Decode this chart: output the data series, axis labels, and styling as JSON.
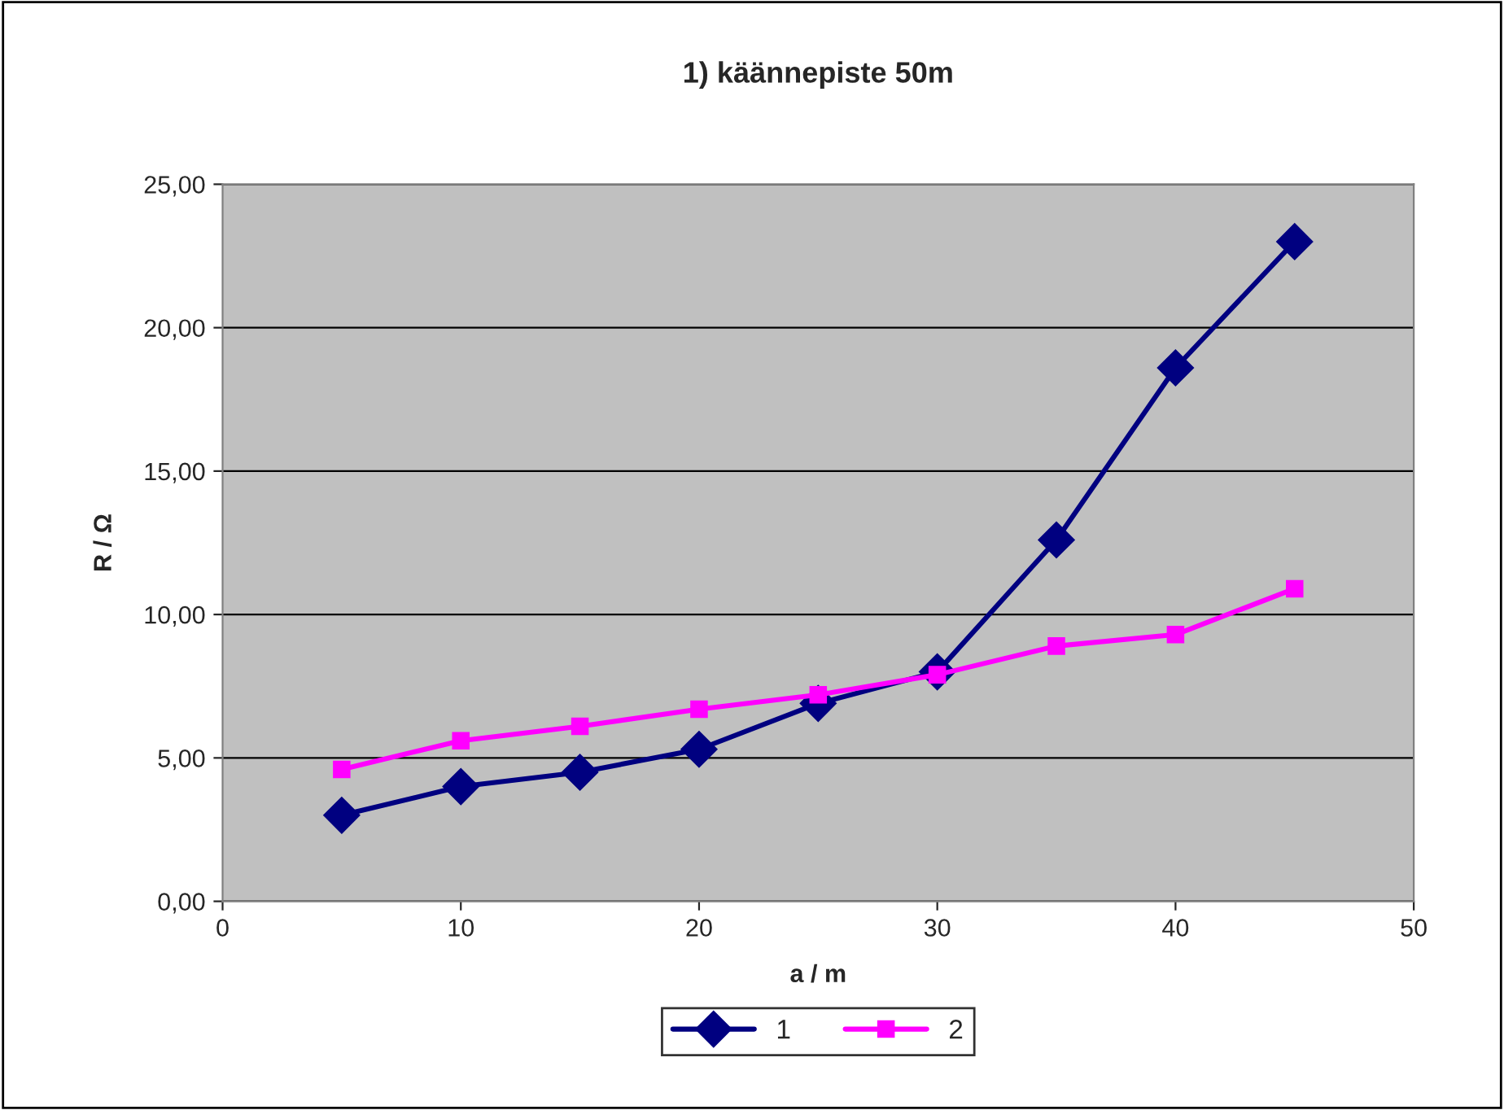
{
  "chart_data": {
    "type": "line",
    "title": "1) käännepiste 50m",
    "xlabel": "a / m",
    "ylabel": "R / Ω",
    "series": [
      {
        "name": "1",
        "color": "#000080",
        "marker": "diamond",
        "x": [
          5,
          10,
          15,
          20,
          25,
          30,
          35,
          40,
          45
        ],
        "values": [
          3.0,
          4.0,
          4.5,
          5.3,
          6.9,
          8.0,
          12.6,
          18.6,
          23.0
        ]
      },
      {
        "name": "2",
        "color": "#ff00ff",
        "marker": "square",
        "x": [
          5,
          10,
          15,
          20,
          25,
          30,
          35,
          40,
          45
        ],
        "values": [
          4.6,
          5.6,
          6.1,
          6.7,
          7.2,
          7.9,
          8.9,
          9.3,
          10.9
        ]
      }
    ],
    "xlim": [
      0,
      50
    ],
    "xticks": [
      0,
      10,
      20,
      30,
      40,
      50
    ],
    "ylim": [
      0,
      25
    ],
    "yticks": [
      {
        "value": 0,
        "label": "0,00"
      },
      {
        "value": 5,
        "label": "5,00"
      },
      {
        "value": 10,
        "label": "10,00"
      },
      {
        "value": 15,
        "label": "15,00"
      },
      {
        "value": 20,
        "label": "20,00"
      },
      {
        "value": 25,
        "label": "25,00"
      }
    ],
    "grid": "y",
    "legend": "bottom",
    "line_style": "solid"
  }
}
